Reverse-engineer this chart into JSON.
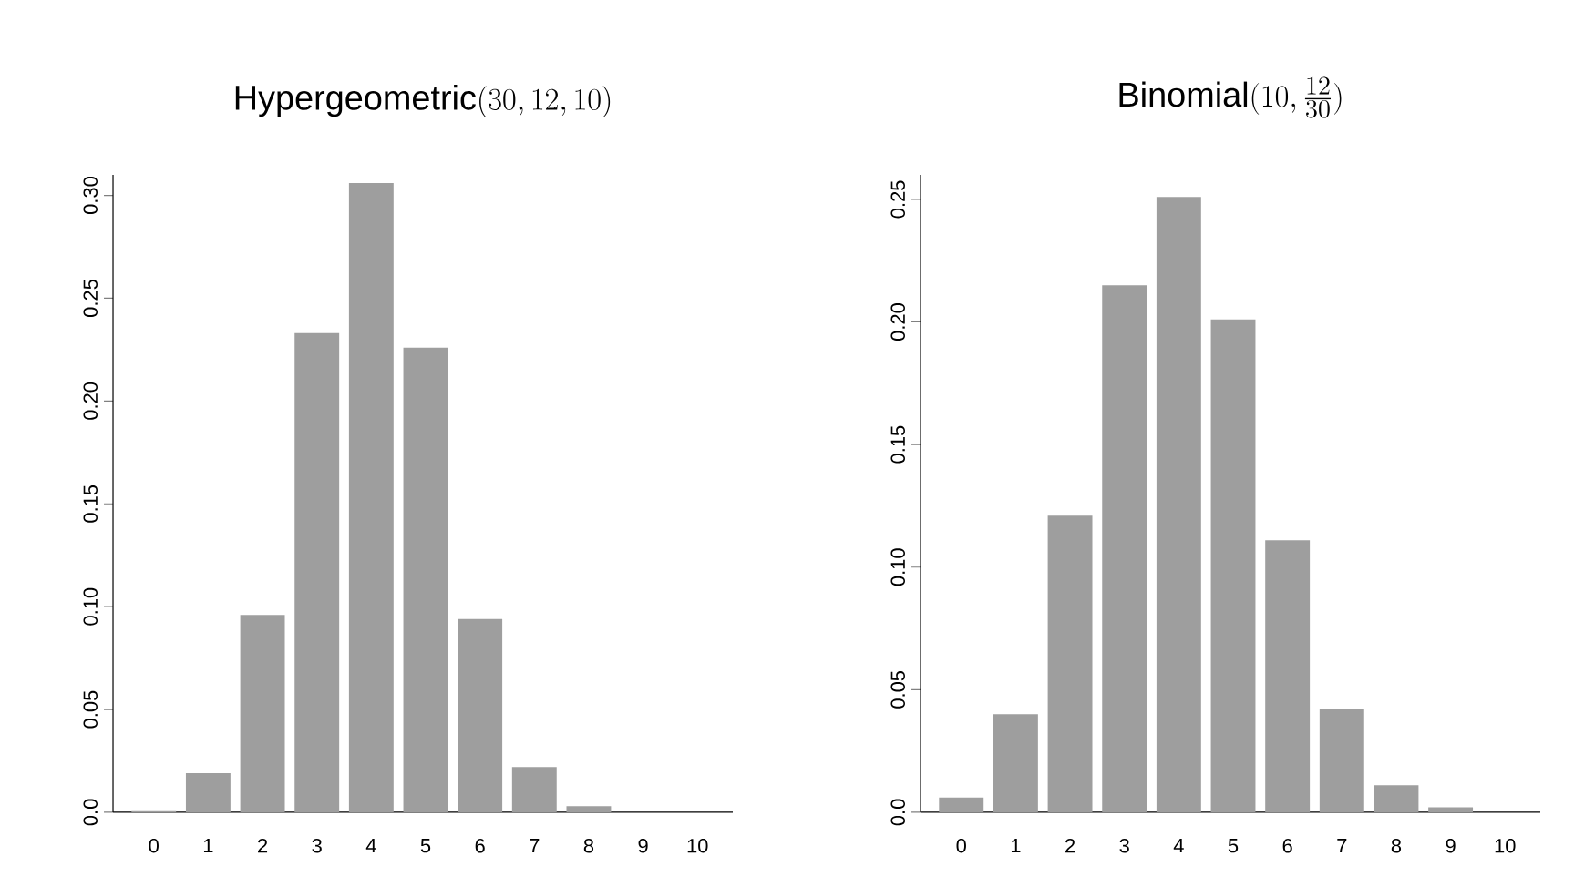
{
  "chart_data": [
    {
      "type": "bar",
      "title": "\\mathrm{Hypergeometric}(30, 12, 10)",
      "categories": [
        "0",
        "1",
        "2",
        "3",
        "4",
        "5",
        "6",
        "7",
        "8",
        "9",
        "10"
      ],
      "values": [
        0.001,
        0.019,
        0.096,
        0.233,
        0.306,
        0.226,
        0.094,
        0.022,
        0.003,
        null,
        0.0
      ],
      "color": "#9e9e9e",
      "ylim": [
        0,
        0.31
      ],
      "yticks": [
        {
          "value": 0,
          "label": "0.0"
        },
        {
          "value": 0.05,
          "label": "0.05"
        },
        {
          "value": 0.1,
          "label": "0.10"
        },
        {
          "value": 0.15,
          "label": "0.15"
        },
        {
          "value": 0.2,
          "label": "0.20"
        },
        {
          "value": 0.25,
          "label": "0.25"
        },
        {
          "value": 0.3,
          "label": "0.30"
        }
      ]
    },
    {
      "type": "bar",
      "title": "\\mathrm{Binomial}(10, \\tfrac{12}{30})",
      "categories": [
        "0",
        "1",
        "2",
        "3",
        "4",
        "5",
        "6",
        "7",
        "8",
        "9",
        "10"
      ],
      "values": [
        0.006,
        0.04,
        0.121,
        0.215,
        0.251,
        0.201,
        0.111,
        0.042,
        0.011,
        0.002,
        null
      ],
      "color": "#9e9e9e",
      "ylim": [
        0,
        0.26
      ],
      "yticks": [
        {
          "value": 0,
          "label": "0.0"
        },
        {
          "value": 0.05,
          "label": "0.05"
        },
        {
          "value": 0.1,
          "label": "0.10"
        },
        {
          "value": 0.15,
          "label": "0.15"
        },
        {
          "value": 0.2,
          "label": "0.20"
        },
        {
          "value": 0.25,
          "label": "0.25"
        }
      ]
    }
  ]
}
